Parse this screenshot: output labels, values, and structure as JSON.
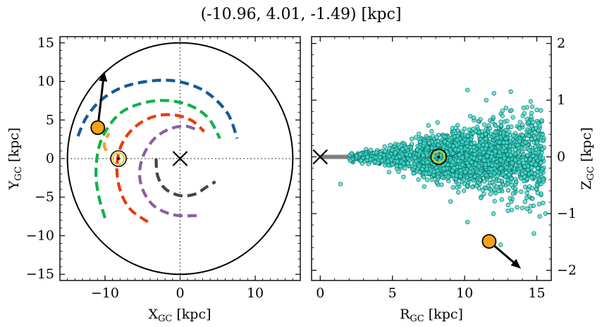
{
  "figure": {
    "title": "(-10.96, 4.01, -1.49) [kpc]"
  },
  "chart_data": [
    {
      "type": "line",
      "panel": "left",
      "xlabel": "X",
      "xlabel_sub": "GC",
      "xlabel_unit": " [kpc]",
      "ylabel": "Y",
      "ylabel_sub": "GC",
      "ylabel_unit": " [kpc]",
      "xlim": [
        -16,
        16
      ],
      "ylim": [
        -15.8,
        15.8
      ],
      "xticks": [
        -10,
        0,
        10
      ],
      "xtick_labels": [
        "−10",
        "0",
        "10"
      ],
      "yticks": [
        -15,
        -10,
        -5,
        0,
        5,
        10,
        15
      ],
      "ytick_labels": [
        "−15",
        "−10",
        "−5",
        "0",
        "5",
        "10",
        "15"
      ],
      "boundary_circle_radius": 15,
      "guide_lines": [
        "x=0",
        "y=0"
      ],
      "galactic_center": [
        0,
        0
      ],
      "sun_position": [
        -8.2,
        0
      ],
      "star": {
        "x": -10.96,
        "y": 4.01,
        "color": "#f5a219"
      },
      "velocity_arrow": {
        "from": [
          -10.96,
          4.01
        ],
        "to": [
          -10.1,
          11.3
        ]
      },
      "spiral_arms": [
        {
          "color": "#125a9a",
          "points": [
            [
              -13.6,
              2.9
            ],
            [
              -12.5,
              5.3
            ],
            [
              -10.5,
              7.6
            ],
            [
              -7.5,
              9.3
            ],
            [
              -3.5,
              10.1
            ],
            [
              0,
              9.95
            ],
            [
              3.5,
              8.6
            ],
            [
              6.3,
              5.9
            ],
            [
              7.6,
              2.6
            ]
          ]
        },
        {
          "color": "#0fb24b",
          "points": [
            [
              -10.0,
              -7.7
            ],
            [
              -10.8,
              -5.0
            ],
            [
              -11.2,
              -2.0
            ],
            [
              -10.8,
              1.5
            ],
            [
              -9.5,
              4.2
            ],
            [
              -7.5,
              6.2
            ],
            [
              -4.5,
              7.3
            ],
            [
              -1.5,
              7.5
            ],
            [
              1.5,
              6.8
            ],
            [
              3.8,
              5.2
            ],
            [
              5.3,
              2.6
            ]
          ]
        },
        {
          "color": "#ec3a0e",
          "points": [
            [
              -4.3,
              -8.2
            ],
            [
              -6.5,
              -6.7
            ],
            [
              -7.8,
              -4.6
            ],
            [
              -8.4,
              -1.8
            ],
            [
              -8.1,
              1.0
            ],
            [
              -6.9,
              3.2
            ],
            [
              -5.0,
              4.8
            ],
            [
              -2.8,
              5.6
            ],
            [
              -0.5,
              5.6
            ],
            [
              1.6,
              4.9
            ],
            [
              3.2,
              3.5
            ]
          ]
        },
        {
          "color": "#8b5ea0",
          "points": [
            [
              2.2,
              -7.4
            ],
            [
              -0.8,
              -7.3
            ],
            [
              -3.4,
              -6.2
            ],
            [
              -4.9,
              -4.2
            ],
            [
              -5.4,
              -1.8
            ],
            [
              -4.8,
              0.6
            ],
            [
              -3.4,
              2.6
            ],
            [
              -1.5,
              3.8
            ],
            [
              0.7,
              4.2
            ],
            [
              2.5,
              3.6
            ]
          ]
        },
        {
          "color": "#444444",
          "points": [
            [
              -3.2,
              0.0
            ],
            [
              -3.0,
              -2.2
            ],
            [
              -2.0,
              -3.9
            ],
            [
              0.0,
              -4.8
            ],
            [
              2.0,
              -4.6
            ],
            [
              3.5,
              -3.7
            ],
            [
              4.7,
              -3.0
            ]
          ]
        },
        {
          "color": "#f5a219",
          "points": [
            [
              -9.8,
              1.0
            ],
            [
              -10.1,
              1.8
            ],
            [
              -9.5,
              3.3
            ]
          ]
        }
      ]
    },
    {
      "type": "scatter",
      "panel": "right",
      "xlabel": "R",
      "xlabel_sub": "GC",
      "xlabel_unit": " [kpc]",
      "ylabel": "Z",
      "ylabel_sub": "GC",
      "ylabel_unit": " [kpc]",
      "xlim": [
        -0.6,
        16.0
      ],
      "ylim": [
        -2.18,
        2.12
      ],
      "xticks": [
        0,
        5,
        10,
        15
      ],
      "xtick_labels": [
        "0",
        "5",
        "10",
        "15"
      ],
      "yticks": [
        -2,
        -1,
        0,
        1,
        2
      ],
      "ytick_labels": [
        "−2",
        "−1",
        "0",
        "1",
        "2"
      ],
      "disk_line": {
        "y": 0,
        "x_range": [
          0,
          15
        ],
        "color": "#808080"
      },
      "galactic_center": [
        0,
        0
      ],
      "sun_position": [
        8.2,
        0
      ],
      "star": {
        "x": 11.7,
        "y": -1.49,
        "color": "#f5a219"
      },
      "velocity_arrow": {
        "from": [
          11.7,
          -1.49
        ],
        "to": [
          13.9,
          -1.97
        ]
      },
      "cloud_color": "#40e0d0",
      "cloud_description": "dense cluster of ~2500 stars spread along the disk from R≈2 to 16 kpc, Z within about ±1.3 kpc, wider at larger R",
      "outliers": [
        [
          1.4,
          -0.48
        ],
        [
          10.2,
          1.18
        ],
        [
          13.2,
          1.15
        ],
        [
          12.0,
          -1.0
        ],
        [
          13.0,
          -0.95
        ],
        [
          14.3,
          -0.72
        ],
        [
          15.2,
          -1.05
        ],
        [
          15.6,
          -1.0
        ],
        [
          14.8,
          -1.35
        ],
        [
          12.5,
          -1.55
        ],
        [
          10.2,
          -1.15
        ],
        [
          6.8,
          -0.4
        ],
        [
          3.5,
          0.12
        ],
        [
          15.0,
          -0.5
        ],
        [
          14.0,
          -0.9
        ],
        [
          11.5,
          1.0
        ]
      ]
    }
  ]
}
